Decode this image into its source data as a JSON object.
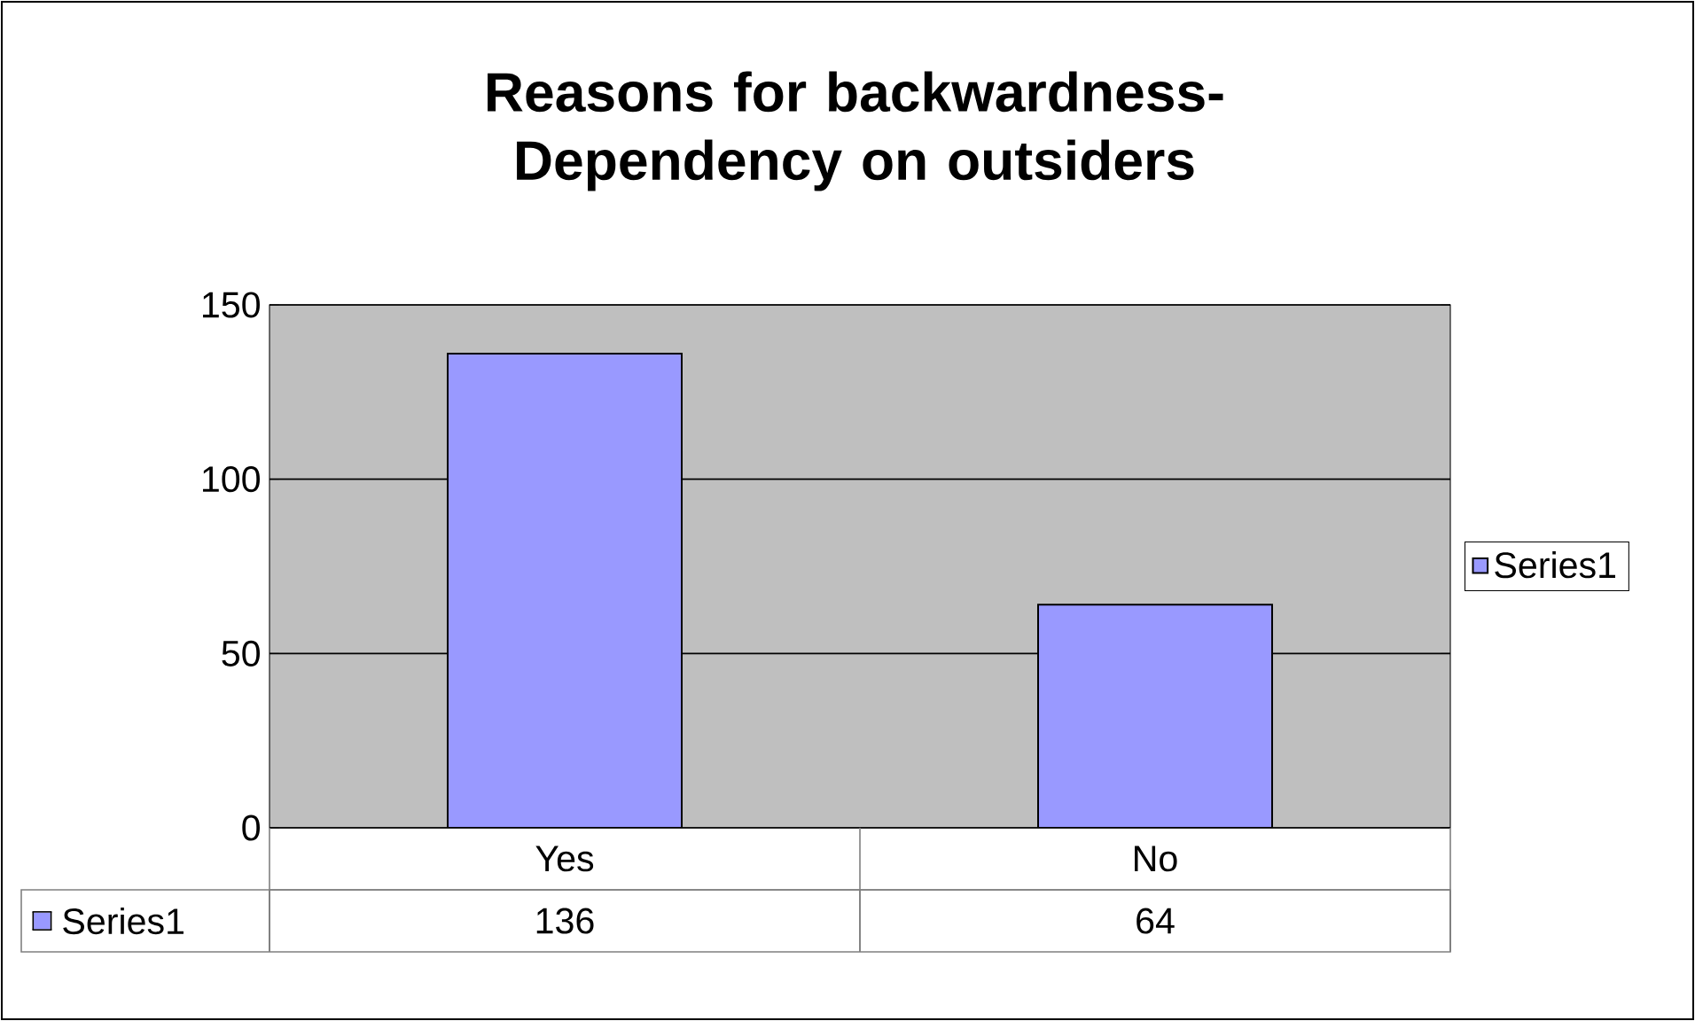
{
  "chart_data": {
    "type": "bar",
    "title": "Reasons for backwardness-Dependency on outsiders",
    "categories": [
      "Yes",
      "No"
    ],
    "series": [
      {
        "name": "Series1",
        "color": "#9999ff",
        "values": [
          136,
          64
        ]
      }
    ],
    "ylim": [
      0,
      150
    ],
    "yticks": [
      0,
      50,
      100,
      150
    ],
    "grid": "y",
    "legend": "right",
    "data_labels": true
  }
}
